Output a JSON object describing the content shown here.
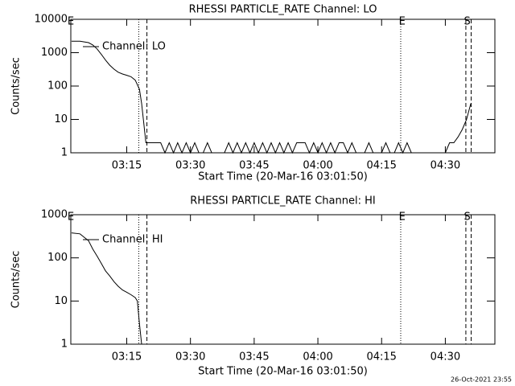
{
  "chart_data": [
    {
      "type": "line",
      "title": "RHESSI PARTICLE_RATE Channel: LO",
      "xlabel": "Start Time (20-Mar-16 03:01:50)",
      "ylabel": "Counts/sec",
      "log_y": true,
      "ylim": [
        1,
        10000
      ],
      "yticks": [
        1,
        10,
        100,
        1000,
        10000
      ],
      "xlim": [
        "03:01:50",
        "04:41:40"
      ],
      "xticks": [
        "03:15",
        "03:30",
        "03:45",
        "04:00",
        "04:15",
        "04:30"
      ],
      "series": [
        {
          "name": "Channel: LO",
          "color": "#000000",
          "x": [
            "03:02",
            "03:04",
            "03:06",
            "03:07",
            "03:08",
            "03:09",
            "03:10",
            "03:11",
            "03:12",
            "03:13",
            "03:14",
            "03:15",
            "03:16",
            "03:17",
            "03:18",
            "03:18:30",
            "03:19",
            "03:19:30",
            "03:20",
            "03:21",
            "03:22",
            "03:23",
            "03:24",
            "03:25",
            "03:26",
            "03:27",
            "03:28",
            "03:29",
            "03:30",
            "03:31",
            "03:32",
            "03:33",
            "03:34",
            "03:35",
            "03:36",
            "03:37",
            "03:38",
            "03:39",
            "03:40",
            "03:41",
            "03:42",
            "03:43",
            "03:44",
            "03:45",
            "03:46",
            "03:47",
            "03:48",
            "03:49",
            "03:50",
            "03:51",
            "03:52",
            "03:53",
            "03:54",
            "03:55",
            "03:56",
            "03:57",
            "03:58",
            "03:59",
            "04:00",
            "04:01",
            "04:02",
            "04:03",
            "04:04",
            "04:05",
            "04:06",
            "04:07",
            "04:08",
            "04:09",
            "04:10",
            "04:11",
            "04:12",
            "04:13",
            "04:14",
            "04:15",
            "04:16",
            "04:17",
            "04:18",
            "04:19",
            "04:20",
            "04:21",
            "04:22",
            "04:30",
            "04:31",
            "04:32",
            "04:33",
            "04:34",
            "04:35",
            "04:36"
          ],
          "values": [
            2200,
            2200,
            2000,
            1700,
            1300,
            900,
            600,
            420,
            320,
            260,
            230,
            210,
            190,
            150,
            80,
            30,
            8,
            2,
            2,
            2,
            2,
            2,
            1,
            2,
            1,
            2,
            1,
            2,
            1,
            2,
            1,
            1,
            2,
            1,
            1,
            1,
            1,
            2,
            1,
            2,
            1,
            2,
            1,
            2,
            1,
            2,
            1,
            2,
            1,
            2,
            1,
            2,
            1,
            2,
            2,
            2,
            1,
            2,
            1,
            2,
            1,
            2,
            1,
            2,
            2,
            1,
            2,
            1,
            1,
            1,
            2,
            1,
            1,
            1,
            2,
            1,
            1,
            2,
            1,
            2,
            1,
            1,
            2,
            2,
            3,
            5,
            10,
            30
          ]
        }
      ],
      "event_lines": [
        {
          "x": "03:17:50",
          "style": "dotted"
        },
        {
          "x": "03:19:45",
          "style": "dashed"
        },
        {
          "x": "04:19:30",
          "style": "dotted"
        },
        {
          "x": "04:34:50",
          "style": "dashed"
        },
        {
          "x": "04:36:05",
          "style": "dashed"
        }
      ],
      "event_labels": [
        {
          "x": "03:01:50",
          "text": "E"
        },
        {
          "x": "04:19:50",
          "text": "E"
        },
        {
          "x": "04:35:10",
          "text": "S"
        }
      ]
    },
    {
      "type": "line",
      "title": "RHESSI PARTICLE_RATE Channel: HI",
      "xlabel": "Start Time (20-Mar-16 03:01:50)",
      "ylabel": "Counts/sec",
      "log_y": true,
      "ylim": [
        1,
        1000
      ],
      "yticks": [
        1,
        10,
        100,
        1000
      ],
      "xlim": [
        "03:01:50",
        "04:41:40"
      ],
      "xticks": [
        "03:15",
        "03:30",
        "03:45",
        "04:00",
        "04:15",
        "04:30"
      ],
      "series": [
        {
          "name": "Channel: HI",
          "color": "#000000",
          "x": [
            "03:02",
            "03:04",
            "03:05",
            "03:06",
            "03:07",
            "03:08",
            "03:09",
            "03:10",
            "03:11",
            "03:12",
            "03:13",
            "03:14",
            "03:15",
            "03:16",
            "03:17",
            "03:17:30",
            "03:18",
            "03:18:30"
          ],
          "values": [
            380,
            360,
            300,
            250,
            160,
            110,
            75,
            50,
            38,
            28,
            22,
            18,
            16,
            14,
            12,
            10,
            3,
            1
          ]
        }
      ],
      "event_lines": [
        {
          "x": "03:17:50",
          "style": "dotted"
        },
        {
          "x": "03:19:45",
          "style": "dashed"
        },
        {
          "x": "04:19:30",
          "style": "dotted"
        },
        {
          "x": "04:34:50",
          "style": "dashed"
        },
        {
          "x": "04:36:05",
          "style": "dashed"
        }
      ],
      "event_labels": [
        {
          "x": "03:01:50",
          "text": "E"
        },
        {
          "x": "04:19:50",
          "text": "E"
        },
        {
          "x": "04:35:10",
          "text": "S"
        }
      ]
    }
  ],
  "footer": "26-Oct-2021 23:55"
}
